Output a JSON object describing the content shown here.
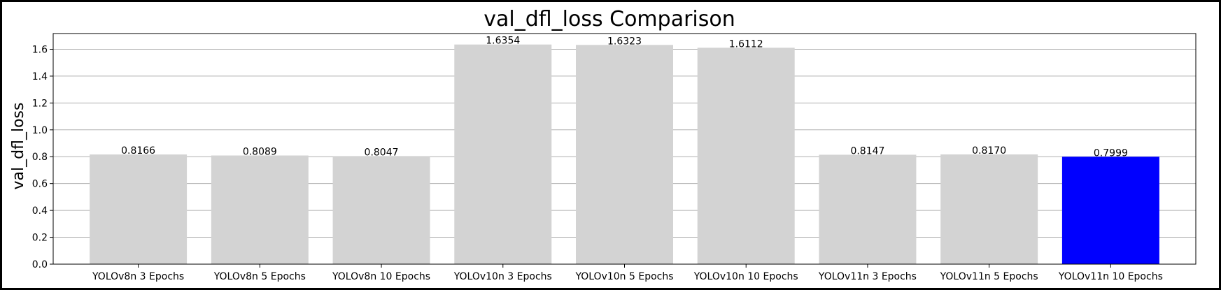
{
  "chart_data": {
    "type": "bar",
    "title": "val_dfl_loss Comparison",
    "xlabel": "",
    "ylabel": "val_dfl_loss",
    "categories": [
      "YOLOv8n 3 Epochs",
      "YOLOv8n 5 Epochs",
      "YOLOv8n 10 Epochs",
      "YOLOv10n 3 Epochs",
      "YOLOv10n 5 Epochs",
      "YOLOv10n 10 Epochs",
      "YOLOv11n 3 Epochs",
      "YOLOv11n 5 Epochs",
      "YOLOv11n 10 Epochs"
    ],
    "values": [
      0.8166,
      0.8089,
      0.8047,
      1.6354,
      1.6323,
      1.6112,
      0.8147,
      0.817,
      0.7999
    ],
    "value_labels": [
      "0.8166",
      "0.8089",
      "0.8047",
      "1.6354",
      "1.6323",
      "1.6112",
      "0.8147",
      "0.8170",
      "0.7999"
    ],
    "bar_colors": [
      "#d3d3d3",
      "#d3d3d3",
      "#d3d3d3",
      "#d3d3d3",
      "#d3d3d3",
      "#d3d3d3",
      "#d3d3d3",
      "#d3d3d3",
      "#0000ff"
    ],
    "ylim": [
      0,
      1.717
    ],
    "yticks": [
      0.0,
      0.2,
      0.4,
      0.6,
      0.8,
      1.0,
      1.2,
      1.4,
      1.6
    ],
    "ytick_labels": [
      "0.0",
      "0.2",
      "0.4",
      "0.6",
      "0.8",
      "1.0",
      "1.2",
      "1.4",
      "1.6"
    ],
    "grid": "y",
    "legend": "none"
  }
}
